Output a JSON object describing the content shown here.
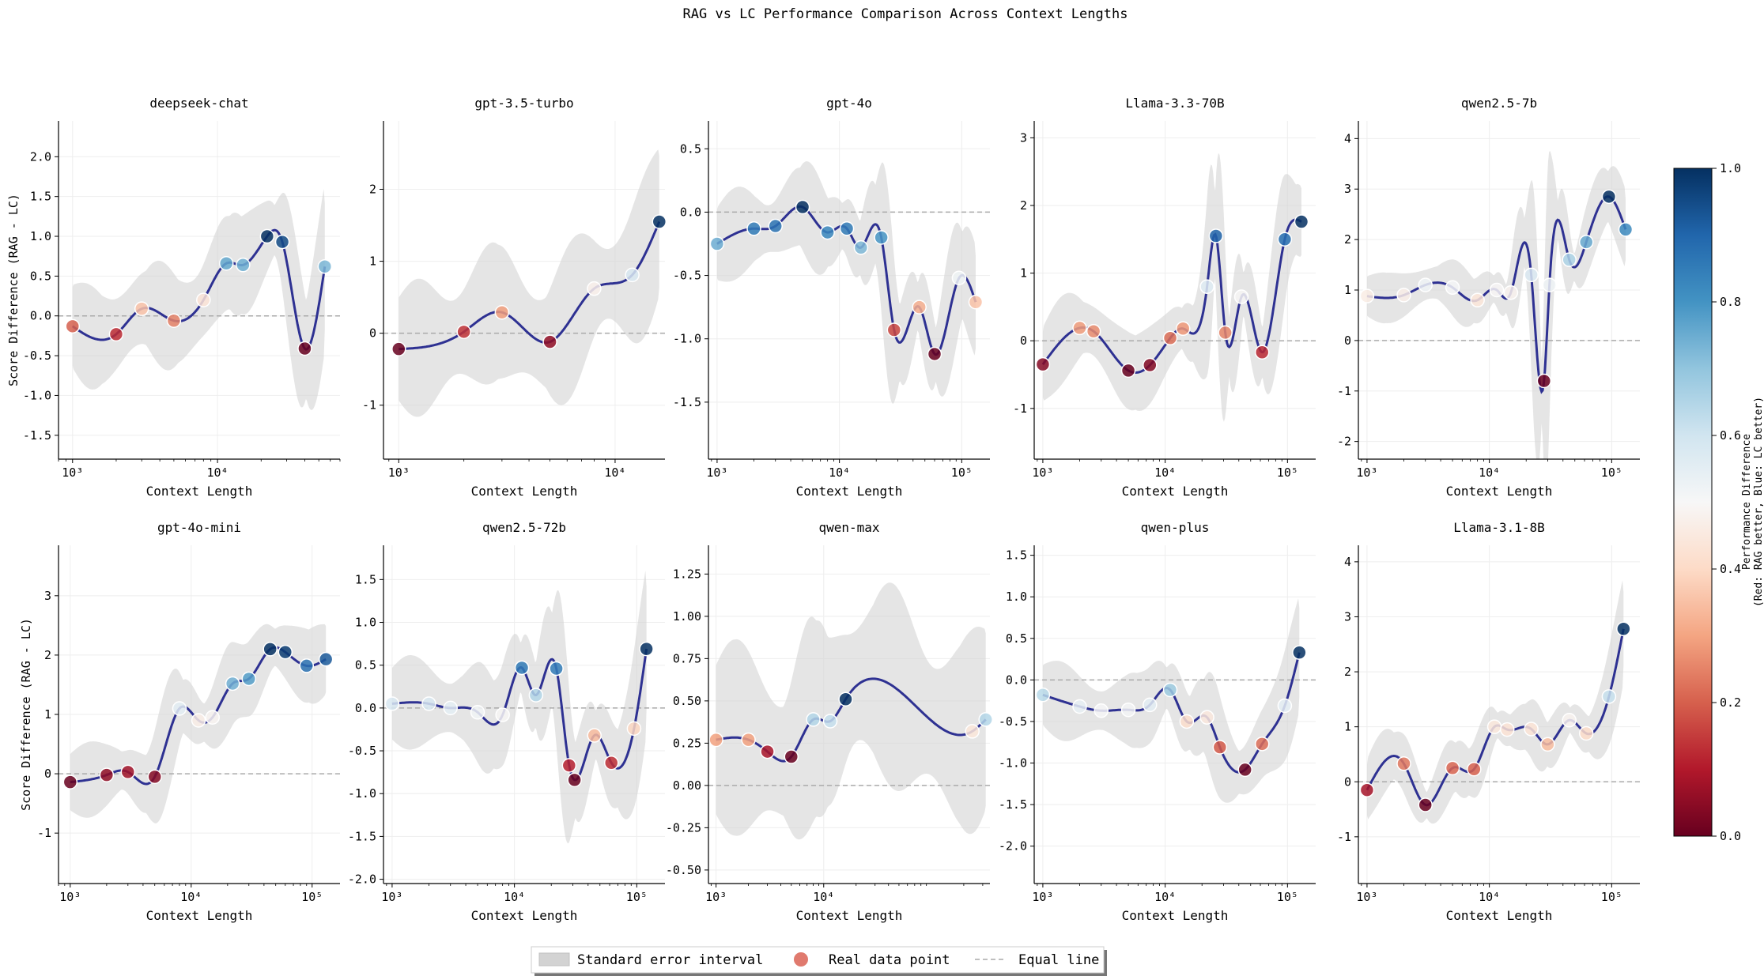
{
  "figure": {
    "title": "RAG vs LC Performance Comparison Across Context Lengths",
    "xlabel": "Context Length",
    "ylabel": "Score Difference (RAG - LC)"
  },
  "legend": {
    "band_label": "Standard error interval",
    "point_label": "Real data point",
    "line_label": "Equal line"
  },
  "colorbar": {
    "label_line1": "Performance Difference",
    "label_line2": "(Red: RAG better, Blue: LC better)",
    "ticks": [
      "0.0",
      "0.2",
      "0.4",
      "0.6",
      "0.8",
      "1.0"
    ]
  },
  "colors": {
    "curve": "#2e3192",
    "band": "#d3d3d3",
    "equal_line": "#aaaaaa",
    "colormap": [
      "#67001f",
      "#b2182b",
      "#d6604d",
      "#f4a582",
      "#fddbc7",
      "#f7f7f7",
      "#d1e5f0",
      "#92c5de",
      "#4393c3",
      "#2166ac",
      "#053061"
    ]
  },
  "chart_data": [
    {
      "type": "line",
      "title": "deepseek-chat",
      "xlim": [
        800,
        70000
      ],
      "ylim": [
        -1.8,
        2.45
      ],
      "yticks": [
        -1.5,
        -1.0,
        -0.5,
        0.0,
        0.5,
        1.0,
        1.5,
        2.0
      ],
      "ytick_labels": [
        "-1.5",
        "-1.0",
        "-0.5",
        "0.0",
        "0.5",
        "1.0",
        "1.5",
        "2.0"
      ],
      "xticks": [
        1000,
        10000
      ],
      "xtick_labels": [
        "10³",
        "10⁴"
      ],
      "points": [
        [
          1000,
          -0.13
        ],
        [
          2000,
          -0.23
        ],
        [
          3000,
          0.09
        ],
        [
          5000,
          -0.06
        ],
        [
          8000,
          0.2
        ],
        [
          11500,
          0.66
        ],
        [
          15000,
          0.64
        ],
        [
          22000,
          1.0
        ],
        [
          28000,
          0.93
        ],
        [
          40000,
          -0.41
        ],
        [
          55000,
          0.62
        ]
      ],
      "band_halfwidth": 0.62
    },
    {
      "type": "line",
      "title": "gpt-3.5-turbo",
      "xlim": [
        850,
        17000
      ],
      "ylim": [
        -1.75,
        2.95
      ],
      "yticks": [
        -1,
        0,
        1,
        2
      ],
      "ytick_labels": [
        "-1",
        "0",
        "1",
        "2"
      ],
      "xticks": [
        1000,
        10000
      ],
      "xtick_labels": [
        "10³",
        "10⁴"
      ],
      "points": [
        [
          1000,
          -0.22
        ],
        [
          2000,
          0.02
        ],
        [
          3000,
          0.29
        ],
        [
          5000,
          -0.12
        ],
        [
          8000,
          0.62
        ],
        [
          12000,
          0.81
        ],
        [
          16000,
          1.55
        ]
      ],
      "band_halfwidth": 0.95
    },
    {
      "type": "line",
      "title": "gpt-4o",
      "xlim": [
        850,
        170000
      ],
      "ylim": [
        -1.95,
        0.72
      ],
      "yticks": [
        -1.5,
        -1.0,
        -0.5,
        0.0,
        0.5
      ],
      "ytick_labels": [
        "-1.5",
        "-1.0",
        "-0.5",
        "0.0",
        "0.5"
      ],
      "xticks": [
        1000,
        10000,
        100000
      ],
      "xtick_labels": [
        "10³",
        "10⁴",
        "10⁵"
      ],
      "points": [
        [
          1000,
          -0.25
        ],
        [
          2000,
          -0.13
        ],
        [
          3000,
          -0.11
        ],
        [
          5000,
          0.04
        ],
        [
          8000,
          -0.16
        ],
        [
          11500,
          -0.13
        ],
        [
          15000,
          -0.28
        ],
        [
          22000,
          -0.2
        ],
        [
          28000,
          -0.93
        ],
        [
          45000,
          -0.75
        ],
        [
          60000,
          -1.12
        ],
        [
          95000,
          -0.52
        ],
        [
          130000,
          -0.71
        ]
      ],
      "band_halfwidth": 0.34
    },
    {
      "type": "line",
      "title": "Llama-3.3-70B",
      "xlim": [
        850,
        170000
      ],
      "ylim": [
        -1.75,
        3.25
      ],
      "yticks": [
        -1,
        0,
        1,
        2,
        3
      ],
      "ytick_labels": [
        "-1",
        "0",
        "1",
        "2",
        "3"
      ],
      "xticks": [
        1000,
        10000,
        100000
      ],
      "xtick_labels": [
        "10³",
        "10⁴",
        "10⁵"
      ],
      "points": [
        [
          1000,
          -0.35
        ],
        [
          2000,
          0.19
        ],
        [
          2600,
          0.14
        ],
        [
          5000,
          -0.44
        ],
        [
          7500,
          -0.36
        ],
        [
          11000,
          0.04
        ],
        [
          14000,
          0.18
        ],
        [
          22000,
          0.8
        ],
        [
          26000,
          1.55
        ],
        [
          31000,
          0.12
        ],
        [
          42000,
          0.65
        ],
        [
          62000,
          -0.17
        ],
        [
          95000,
          1.5
        ],
        [
          130000,
          1.76
        ]
      ],
      "band_halfwidth": 0.55
    },
    {
      "type": "line",
      "title": "qwen2.5-7b",
      "xlim": [
        850,
        170000
      ],
      "ylim": [
        -2.35,
        4.35
      ],
      "yticks": [
        -2,
        -1,
        0,
        1,
        2,
        3,
        4
      ],
      "ytick_labels": [
        "-2",
        "-1",
        "0",
        "1",
        "2",
        "3",
        "4"
      ],
      "xticks": [
        1000,
        10000,
        100000
      ],
      "xtick_labels": [
        "10³",
        "10⁴",
        "10⁵"
      ],
      "points": [
        [
          1000,
          0.88
        ],
        [
          2000,
          0.9
        ],
        [
          3000,
          1.1
        ],
        [
          5000,
          1.05
        ],
        [
          8000,
          0.8
        ],
        [
          11500,
          1.0
        ],
        [
          15000,
          0.95
        ],
        [
          22000,
          1.3
        ],
        [
          28000,
          -0.8
        ],
        [
          31000,
          1.1
        ],
        [
          45000,
          1.6
        ],
        [
          62000,
          1.95
        ],
        [
          95000,
          2.85
        ],
        [
          130000,
          2.2
        ]
      ],
      "band_halfwidth": 0.5
    },
    {
      "type": "line",
      "title": "gpt-4o-mini",
      "xlim": [
        800,
        170000
      ],
      "ylim": [
        -1.85,
        3.85
      ],
      "yticks": [
        -1,
        0,
        1,
        2,
        3
      ],
      "ytick_labels": [
        "-1",
        "0",
        "1",
        "2",
        "3"
      ],
      "xticks": [
        1000,
        10000,
        100000
      ],
      "xtick_labels": [
        "10³",
        "10⁴",
        "10⁵"
      ],
      "points": [
        [
          1000,
          -0.14
        ],
        [
          2000,
          -0.02
        ],
        [
          3000,
          0.03
        ],
        [
          5000,
          -0.05
        ],
        [
          8000,
          1.1
        ],
        [
          11500,
          0.9
        ],
        [
          15000,
          0.95
        ],
        [
          22000,
          1.52
        ],
        [
          30000,
          1.6
        ],
        [
          45000,
          2.1
        ],
        [
          60000,
          2.05
        ],
        [
          90000,
          1.82
        ],
        [
          130000,
          1.93
        ]
      ],
      "band_halfwidth": 0.62
    },
    {
      "type": "line",
      "title": "qwen2.5-72b",
      "xlim": [
        850,
        170000
      ],
      "ylim": [
        -2.05,
        1.9
      ],
      "yticks": [
        -2.0,
        -1.5,
        -1.0,
        -0.5,
        0.0,
        0.5,
        1.0,
        1.5
      ],
      "ytick_labels": [
        "-2.0",
        "-1.5",
        "-1.0",
        "-0.5",
        "0.0",
        "0.5",
        "1.0",
        "1.5"
      ],
      "xticks": [
        1000,
        10000,
        100000
      ],
      "xtick_labels": [
        "10³",
        "10⁴",
        "10⁵"
      ],
      "points": [
        [
          1000,
          0.05
        ],
        [
          2000,
          0.05
        ],
        [
          3000,
          0.0
        ],
        [
          5000,
          -0.05
        ],
        [
          8000,
          -0.08
        ],
        [
          11500,
          0.47
        ],
        [
          15000,
          0.15
        ],
        [
          22000,
          0.46
        ],
        [
          28000,
          -0.67
        ],
        [
          31000,
          -0.84
        ],
        [
          45000,
          -0.32
        ],
        [
          62000,
          -0.64
        ],
        [
          95000,
          -0.24
        ],
        [
          120000,
          0.69
        ]
      ],
      "band_halfwidth": 0.55
    },
    {
      "type": "line",
      "title": "qwen-max",
      "xlim": [
        850,
        350000
      ],
      "ylim": [
        -0.58,
        1.42
      ],
      "yticks": [
        -0.5,
        -0.25,
        0.0,
        0.25,
        0.5,
        0.75,
        1.0,
        1.25
      ],
      "ytick_labels": [
        "-0.50",
        "-0.25",
        "0.00",
        "0.25",
        "0.50",
        "0.75",
        "1.00",
        "1.25"
      ],
      "xticks": [
        1000,
        10000
      ],
      "xtick_labels": [
        "10³",
        "10⁴"
      ],
      "points": [
        [
          1000,
          0.27
        ],
        [
          2000,
          0.27
        ],
        [
          3000,
          0.2
        ],
        [
          5000,
          0.17
        ],
        [
          8000,
          0.39
        ],
        [
          11500,
          0.38
        ],
        [
          16000,
          0.51
        ],
        [
          240000,
          0.32
        ],
        [
          320000,
          0.39
        ]
      ],
      "band_halfwidth": 0.58
    },
    {
      "type": "line",
      "title": "qwen-plus",
      "xlim": [
        850,
        170000
      ],
      "ylim": [
        -2.45,
        1.62
      ],
      "yticks": [
        -2.0,
        -1.5,
        -1.0,
        -0.5,
        0.0,
        0.5,
        1.0,
        1.5
      ],
      "ytick_labels": [
        "-2.0",
        "-1.5",
        "-1.0",
        "-0.5",
        "0.0",
        "0.5",
        "1.0",
        "1.5"
      ],
      "xticks": [
        1000,
        10000,
        100000
      ],
      "xtick_labels": [
        "10³",
        "10⁴",
        "10⁵"
      ],
      "points": [
        [
          1000,
          -0.18
        ],
        [
          2000,
          -0.32
        ],
        [
          3000,
          -0.37
        ],
        [
          5000,
          -0.36
        ],
        [
          7500,
          -0.3
        ],
        [
          11000,
          -0.12
        ],
        [
          15000,
          -0.5
        ],
        [
          22000,
          -0.45
        ],
        [
          28000,
          -0.81
        ],
        [
          45000,
          -1.08
        ],
        [
          62000,
          -0.77
        ],
        [
          95000,
          -0.31
        ],
        [
          125000,
          0.33
        ]
      ],
      "band_halfwidth": 0.45
    },
    {
      "type": "line",
      "title": "Llama-3.1-8B",
      "xlim": [
        850,
        170000
      ],
      "ylim": [
        -1.85,
        4.3
      ],
      "yticks": [
        -1,
        0,
        1,
        2,
        3,
        4
      ],
      "ytick_labels": [
        "-1",
        "0",
        "1",
        "2",
        "3",
        "4"
      ],
      "xticks": [
        1000,
        10000,
        100000
      ],
      "xtick_labels": [
        "10³",
        "10⁴",
        "10⁵"
      ],
      "points": [
        [
          1000,
          -0.15
        ],
        [
          2000,
          0.33
        ],
        [
          3000,
          -0.42
        ],
        [
          5000,
          0.25
        ],
        [
          7500,
          0.23
        ],
        [
          11000,
          1.0
        ],
        [
          14000,
          0.95
        ],
        [
          22000,
          0.96
        ],
        [
          30000,
          0.68
        ],
        [
          45000,
          1.12
        ],
        [
          62000,
          0.88
        ],
        [
          95000,
          1.55
        ],
        [
          125000,
          2.78
        ]
      ],
      "band_halfwidth": 0.45
    }
  ]
}
